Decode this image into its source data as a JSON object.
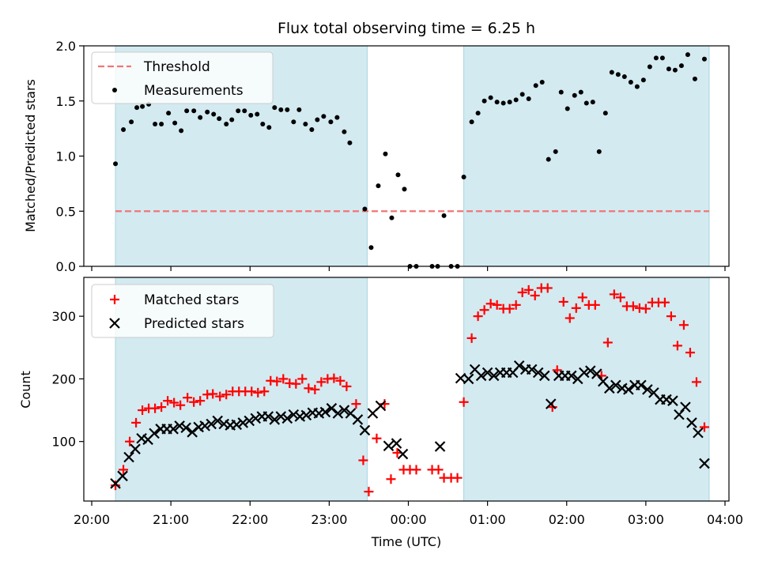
{
  "chart_data": [
    {
      "type": "scatter",
      "title": "Flux total observing time = 6.25 h",
      "ylabel": "Matched/Predicted stars",
      "xlabel": "",
      "ylim": [
        0,
        2.0
      ],
      "yticks": [
        "0.0",
        "0.5",
        "1.0",
        "1.5",
        "2.0"
      ],
      "xlim": [
        -0.1,
        8.05
      ],
      "shaded_intervals": [
        [
          0.3,
          3.48
        ],
        [
          4.7,
          7.8
        ]
      ],
      "shade_color": "#d3eaf1",
      "threshold": {
        "name": "Threshold",
        "value": 0.5,
        "x_range": [
          0.3,
          7.8
        ],
        "color": "#f07676"
      },
      "legend": [
        "Threshold",
        "Measurements"
      ],
      "legend_position": "upper left",
      "series": [
        {
          "name": "Measurements",
          "color": "#000000",
          "marker": "dot",
          "points": [
            [
              0.3,
              0.93
            ],
            [
              0.4,
              1.24
            ],
            [
              0.5,
              1.31
            ],
            [
              0.57,
              1.44
            ],
            [
              0.64,
              1.45
            ],
            [
              0.72,
              1.47
            ],
            [
              0.8,
              1.29
            ],
            [
              0.88,
              1.29
            ],
            [
              0.97,
              1.39
            ],
            [
              1.05,
              1.3
            ],
            [
              1.13,
              1.23
            ],
            [
              1.2,
              1.41
            ],
            [
              1.29,
              1.41
            ],
            [
              1.37,
              1.35
            ],
            [
              1.46,
              1.4
            ],
            [
              1.54,
              1.38
            ],
            [
              1.61,
              1.34
            ],
            [
              1.7,
              1.29
            ],
            [
              1.77,
              1.33
            ],
            [
              1.85,
              1.41
            ],
            [
              1.93,
              1.41
            ],
            [
              2.01,
              1.37
            ],
            [
              2.09,
              1.38
            ],
            [
              2.16,
              1.29
            ],
            [
              2.24,
              1.26
            ],
            [
              2.31,
              1.44
            ],
            [
              2.39,
              1.42
            ],
            [
              2.47,
              1.42
            ],
            [
              2.55,
              1.31
            ],
            [
              2.62,
              1.42
            ],
            [
              2.7,
              1.29
            ],
            [
              2.78,
              1.24
            ],
            [
              2.85,
              1.33
            ],
            [
              2.93,
              1.36
            ],
            [
              3.02,
              1.31
            ],
            [
              3.1,
              1.35
            ],
            [
              3.19,
              1.22
            ],
            [
              3.26,
              1.12
            ],
            [
              3.45,
              0.52
            ],
            [
              3.53,
              0.17
            ],
            [
              3.62,
              0.73
            ],
            [
              3.71,
              1.02
            ],
            [
              3.79,
              0.44
            ],
            [
              3.87,
              0.83
            ],
            [
              3.95,
              0.7
            ],
            [
              4.02,
              0.0
            ],
            [
              4.1,
              0.0
            ],
            [
              4.3,
              0.0
            ],
            [
              4.37,
              0.0
            ],
            [
              4.45,
              0.46
            ],
            [
              4.54,
              0.0
            ],
            [
              4.62,
              0.0
            ],
            [
              4.7,
              0.81
            ],
            [
              4.8,
              1.31
            ],
            [
              4.88,
              1.39
            ],
            [
              4.96,
              1.5
            ],
            [
              5.04,
              1.53
            ],
            [
              5.12,
              1.49
            ],
            [
              5.2,
              1.48
            ],
            [
              5.28,
              1.49
            ],
            [
              5.36,
              1.51
            ],
            [
              5.44,
              1.56
            ],
            [
              5.52,
              1.52
            ],
            [
              5.61,
              1.64
            ],
            [
              5.69,
              1.67
            ],
            [
              5.77,
              0.97
            ],
            [
              5.86,
              1.04
            ],
            [
              5.93,
              1.58
            ],
            [
              6.01,
              1.43
            ],
            [
              6.1,
              1.55
            ],
            [
              6.18,
              1.58
            ],
            [
              6.25,
              1.48
            ],
            [
              6.33,
              1.49
            ],
            [
              6.41,
              1.04
            ],
            [
              6.49,
              1.39
            ],
            [
              6.57,
              1.76
            ],
            [
              6.65,
              1.74
            ],
            [
              6.73,
              1.72
            ],
            [
              6.81,
              1.67
            ],
            [
              6.89,
              1.63
            ],
            [
              6.97,
              1.69
            ],
            [
              7.05,
              1.81
            ],
            [
              7.13,
              1.89
            ],
            [
              7.21,
              1.89
            ],
            [
              7.29,
              1.79
            ],
            [
              7.37,
              1.78
            ],
            [
              7.45,
              1.82
            ],
            [
              7.53,
              1.92
            ],
            [
              7.62,
              1.7
            ],
            [
              7.74,
              1.88
            ]
          ]
        }
      ]
    },
    {
      "type": "scatter",
      "ylabel": "Count",
      "xlabel": "Time (UTC)",
      "ylim": [
        5,
        362
      ],
      "yticks": [
        "100",
        "200",
        "300"
      ],
      "xlim": [
        -0.1,
        8.05
      ],
      "xticks": [
        "20:00",
        "21:00",
        "22:00",
        "23:00",
        "00:00",
        "01:00",
        "02:00",
        "03:00",
        "04:00"
      ],
      "shaded_intervals": [
        [
          0.3,
          3.48
        ],
        [
          4.7,
          7.8
        ]
      ],
      "shade_color": "#d3eaf1",
      "legend": [
        "Matched stars",
        "Predicted stars"
      ],
      "legend_position": "upper left",
      "series": [
        {
          "name": "Matched stars",
          "color": "#ff0000",
          "marker": "plus",
          "points": [
            [
              0.3,
              30
            ],
            [
              0.4,
              55
            ],
            [
              0.48,
              100
            ],
            [
              0.56,
              130
            ],
            [
              0.64,
              150
            ],
            [
              0.72,
              153
            ],
            [
              0.8,
              153
            ],
            [
              0.88,
              155
            ],
            [
              0.96,
              165
            ],
            [
              1.04,
              162
            ],
            [
              1.12,
              158
            ],
            [
              1.21,
              170
            ],
            [
              1.29,
              163
            ],
            [
              1.37,
              165
            ],
            [
              1.46,
              175
            ],
            [
              1.53,
              176
            ],
            [
              1.62,
              172
            ],
            [
              1.7,
              175
            ],
            [
              1.78,
              180
            ],
            [
              1.86,
              180
            ],
            [
              1.94,
              180
            ],
            [
              2.02,
              180
            ],
            [
              2.1,
              178
            ],
            [
              2.18,
              180
            ],
            [
              2.26,
              197
            ],
            [
              2.34,
              196
            ],
            [
              2.42,
              200
            ],
            [
              2.5,
              193
            ],
            [
              2.58,
              192
            ],
            [
              2.66,
              200
            ],
            [
              2.74,
              185
            ],
            [
              2.82,
              183
            ],
            [
              2.9,
              195
            ],
            [
              2.98,
              200
            ],
            [
              3.06,
              201
            ],
            [
              3.14,
              197
            ],
            [
              3.22,
              188
            ],
            [
              3.34,
              160
            ],
            [
              3.43,
              70
            ],
            [
              3.5,
              20
            ],
            [
              3.6,
              105
            ],
            [
              3.7,
              160
            ],
            [
              3.78,
              40
            ],
            [
              3.86,
              82
            ],
            [
              3.94,
              55
            ],
            [
              4.02,
              55
            ],
            [
              4.1,
              55
            ],
            [
              4.3,
              55
            ],
            [
              4.38,
              55
            ],
            [
              4.45,
              42
            ],
            [
              4.54,
              42
            ],
            [
              4.62,
              42
            ],
            [
              4.7,
              163
            ],
            [
              4.8,
              265
            ],
            [
              4.88,
              300
            ],
            [
              4.96,
              310
            ],
            [
              5.04,
              320
            ],
            [
              5.12,
              318
            ],
            [
              5.2,
              312
            ],
            [
              5.28,
              312
            ],
            [
              5.36,
              318
            ],
            [
              5.44,
              338
            ],
            [
              5.52,
              342
            ],
            [
              5.6,
              333
            ],
            [
              5.68,
              345
            ],
            [
              5.76,
              345
            ],
            [
              5.82,
              155
            ],
            [
              5.88,
              214
            ],
            [
              5.96,
              323
            ],
            [
              6.04,
              297
            ],
            [
              6.12,
              313
            ],
            [
              6.2,
              330
            ],
            [
              6.28,
              318
            ],
            [
              6.36,
              318
            ],
            [
              6.44,
              205
            ],
            [
              6.52,
              258
            ],
            [
              6.6,
              335
            ],
            [
              6.68,
              330
            ],
            [
              6.76,
              316
            ],
            [
              6.84,
              316
            ],
            [
              6.92,
              313
            ],
            [
              7.0,
              312
            ],
            [
              7.08,
              322
            ],
            [
              7.16,
              322
            ],
            [
              7.24,
              322
            ],
            [
              7.32,
              300
            ],
            [
              7.4,
              253
            ],
            [
              7.48,
              286
            ],
            [
              7.56,
              242
            ],
            [
              7.64,
              195
            ],
            [
              7.74,
              123
            ]
          ]
        },
        {
          "name": "Predicted stars",
          "color": "#000000",
          "marker": "x",
          "points": [
            [
              0.3,
              33
            ],
            [
              0.39,
              45
            ],
            [
              0.47,
              75
            ],
            [
              0.55,
              88
            ],
            [
              0.63,
              105
            ],
            [
              0.71,
              103
            ],
            [
              0.79,
              113
            ],
            [
              0.87,
              120
            ],
            [
              0.95,
              120
            ],
            [
              1.03,
              120
            ],
            [
              1.11,
              125
            ],
            [
              1.19,
              122
            ],
            [
              1.27,
              115
            ],
            [
              1.35,
              123
            ],
            [
              1.43,
              125
            ],
            [
              1.51,
              128
            ],
            [
              1.59,
              133
            ],
            [
              1.67,
              128
            ],
            [
              1.75,
              126
            ],
            [
              1.83,
              127
            ],
            [
              1.91,
              130
            ],
            [
              1.99,
              133
            ],
            [
              2.07,
              137
            ],
            [
              2.15,
              140
            ],
            [
              2.23,
              140
            ],
            [
              2.31,
              135
            ],
            [
              2.39,
              140
            ],
            [
              2.47,
              137
            ],
            [
              2.55,
              143
            ],
            [
              2.63,
              140
            ],
            [
              2.71,
              142
            ],
            [
              2.79,
              146
            ],
            [
              2.87,
              145
            ],
            [
              2.95,
              147
            ],
            [
              3.03,
              153
            ],
            [
              3.11,
              145
            ],
            [
              3.19,
              150
            ],
            [
              3.27,
              145
            ],
            [
              3.36,
              135
            ],
            [
              3.45,
              118
            ],
            [
              3.55,
              145
            ],
            [
              3.65,
              157
            ],
            [
              3.75,
              93
            ],
            [
              3.85,
              97
            ],
            [
              3.93,
              80
            ],
            [
              4.4,
              92
            ],
            [
              4.66,
              201
            ],
            [
              4.76,
              200
            ],
            [
              4.84,
              215
            ],
            [
              4.92,
              205
            ],
            [
              5.0,
              210
            ],
            [
              5.08,
              205
            ],
            [
              5.16,
              210
            ],
            [
              5.24,
              210
            ],
            [
              5.32,
              210
            ],
            [
              5.4,
              221
            ],
            [
              5.48,
              215
            ],
            [
              5.56,
              215
            ],
            [
              5.64,
              210
            ],
            [
              5.72,
              205
            ],
            [
              5.8,
              160
            ],
            [
              5.9,
              205
            ],
            [
              5.98,
              205
            ],
            [
              6.06,
              205
            ],
            [
              6.14,
              200
            ],
            [
              6.22,
              210
            ],
            [
              6.3,
              213
            ],
            [
              6.38,
              208
            ],
            [
              6.46,
              196
            ],
            [
              6.54,
              185
            ],
            [
              6.62,
              190
            ],
            [
              6.7,
              185
            ],
            [
              6.78,
              183
            ],
            [
              6.86,
              190
            ],
            [
              6.94,
              190
            ],
            [
              7.02,
              183
            ],
            [
              7.1,
              178
            ],
            [
              7.18,
              167
            ],
            [
              7.26,
              167
            ],
            [
              7.34,
              165
            ],
            [
              7.42,
              143
            ],
            [
              7.5,
              155
            ],
            [
              7.58,
              130
            ],
            [
              7.66,
              114
            ],
            [
              7.74,
              65
            ]
          ]
        }
      ]
    }
  ]
}
